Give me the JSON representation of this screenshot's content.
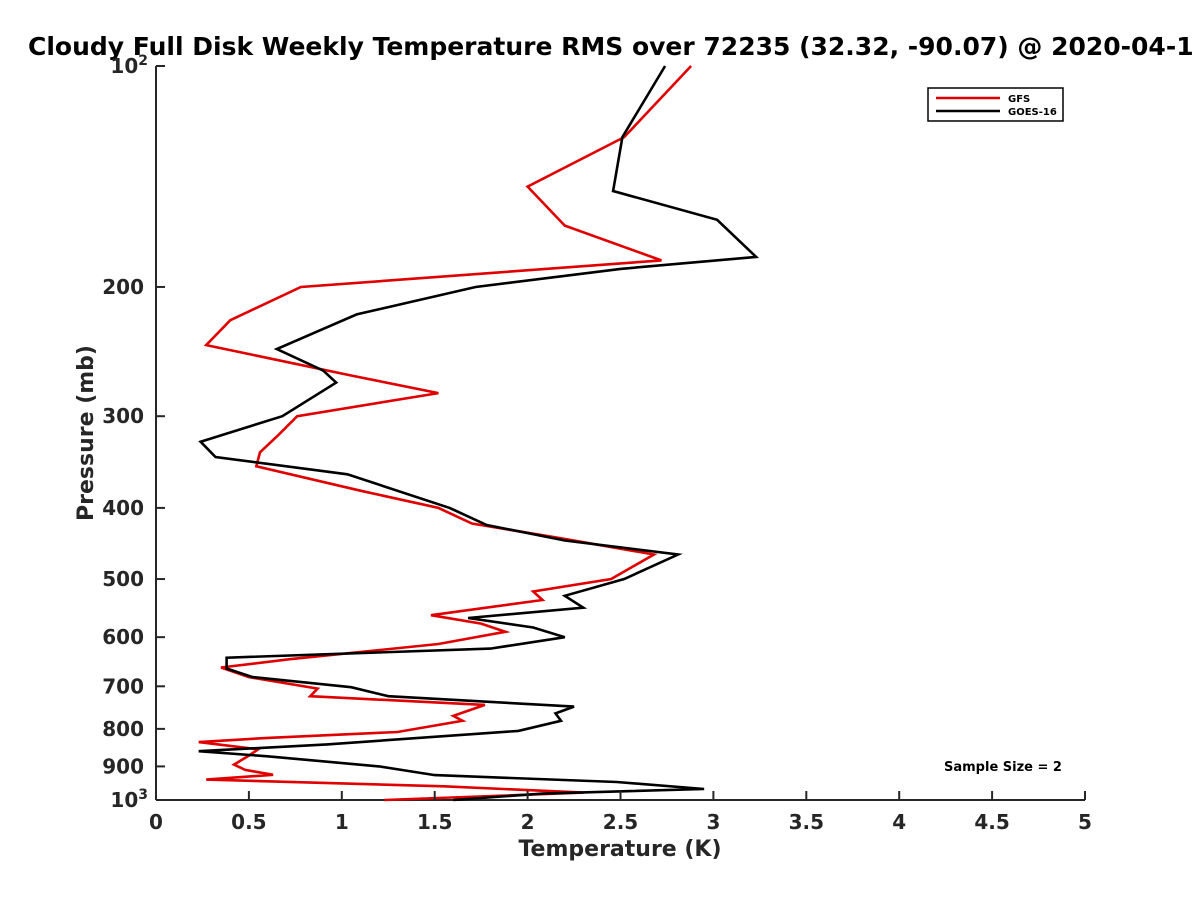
{
  "chart_data": {
    "type": "line",
    "title": "Cloudy Full Disk Weekly Temperature RMS over 72235 (32.32, -90.07) @ 2020-04-1",
    "xlabel": "Temperature (K)",
    "ylabel": "Pressure (mb)",
    "xlim": [
      0,
      5
    ],
    "ylim": [
      100,
      1000
    ],
    "y_scale": "log",
    "y_reversed": true,
    "x_ticks": [
      "0",
      "0.5",
      "1",
      "1.5",
      "2",
      "2.5",
      "3",
      "3.5",
      "4",
      "4.5",
      "5"
    ],
    "y_ticks": [
      {
        "value": 100,
        "base": "10",
        "exp": "2"
      },
      {
        "value": 200,
        "label": "200"
      },
      {
        "value": 300,
        "label": "300"
      },
      {
        "value": 400,
        "label": "400"
      },
      {
        "value": 500,
        "label": "500"
      },
      {
        "value": 600,
        "label": "600"
      },
      {
        "value": 700,
        "label": "700"
      },
      {
        "value": 800,
        "label": "800"
      },
      {
        "value": 900,
        "label": "900"
      },
      {
        "value": 1000,
        "base": "10",
        "exp": "3"
      }
    ],
    "legend_position": "top-right",
    "grid": false,
    "annotation": "Sample Size = 2",
    "series": [
      {
        "name": "GFS",
        "color": "#e00000",
        "points": [
          [
            2.88,
            100
          ],
          [
            2.52,
            125
          ],
          [
            2.0,
            146
          ],
          [
            2.2,
            165
          ],
          [
            2.72,
            184
          ],
          [
            0.78,
            200
          ],
          [
            0.4,
            222
          ],
          [
            0.27,
            240
          ],
          [
            1.05,
            264
          ],
          [
            1.52,
            279
          ],
          [
            0.76,
            300
          ],
          [
            0.66,
            318
          ],
          [
            0.56,
            336
          ],
          [
            0.54,
            351
          ],
          [
            1.1,
            379
          ],
          [
            1.52,
            400
          ],
          [
            1.7,
            420
          ],
          [
            2.18,
            440
          ],
          [
            2.68,
            463
          ],
          [
            2.45,
            500
          ],
          [
            2.03,
            520
          ],
          [
            2.08,
            534
          ],
          [
            1.48,
            560
          ],
          [
            1.75,
            575
          ],
          [
            1.88,
            590
          ],
          [
            1.52,
            613
          ],
          [
            0.72,
            643
          ],
          [
            0.35,
            660
          ],
          [
            0.5,
            680
          ],
          [
            0.87,
            705
          ],
          [
            0.83,
            722
          ],
          [
            1.77,
            742
          ],
          [
            1.6,
            768
          ],
          [
            1.65,
            780
          ],
          [
            1.3,
            808
          ],
          [
            0.6,
            823
          ],
          [
            0.23,
            834
          ],
          [
            0.55,
            853
          ],
          [
            0.5,
            870
          ],
          [
            0.42,
            895
          ],
          [
            0.48,
            910
          ],
          [
            0.63,
            924
          ],
          [
            0.27,
            938
          ],
          [
            1.55,
            958
          ],
          [
            2.3,
            977
          ],
          [
            1.23,
            1000
          ]
        ]
      },
      {
        "name": "GOES-16",
        "color": "#000000",
        "points": [
          [
            2.74,
            100
          ],
          [
            2.51,
            125
          ],
          [
            2.46,
            148
          ],
          [
            3.02,
            162
          ],
          [
            3.23,
            182
          ],
          [
            2.5,
            189
          ],
          [
            1.72,
            200
          ],
          [
            1.08,
            218
          ],
          [
            0.65,
            243
          ],
          [
            0.9,
            260
          ],
          [
            0.97,
            270
          ],
          [
            0.68,
            300
          ],
          [
            0.24,
            325
          ],
          [
            0.32,
            341
          ],
          [
            1.03,
            360
          ],
          [
            1.58,
            400
          ],
          [
            1.78,
            422
          ],
          [
            2.2,
            443
          ],
          [
            2.81,
            463
          ],
          [
            2.52,
            500
          ],
          [
            2.2,
            527
          ],
          [
            2.3,
            547
          ],
          [
            1.68,
            565
          ],
          [
            2.03,
            582
          ],
          [
            2.2,
            600
          ],
          [
            1.8,
            622
          ],
          [
            0.38,
            640
          ],
          [
            0.38,
            662
          ],
          [
            0.52,
            680
          ],
          [
            1.05,
            702
          ],
          [
            1.25,
            722
          ],
          [
            2.25,
            746
          ],
          [
            2.15,
            762
          ],
          [
            2.18,
            780
          ],
          [
            1.95,
            805
          ],
          [
            0.92,
            840
          ],
          [
            0.23,
            858
          ],
          [
            0.6,
            872
          ],
          [
            1.2,
            900
          ],
          [
            1.5,
            925
          ],
          [
            2.48,
            945
          ],
          [
            2.95,
            966
          ],
          [
            2.08,
            980
          ],
          [
            1.6,
            1000
          ]
        ]
      }
    ]
  }
}
